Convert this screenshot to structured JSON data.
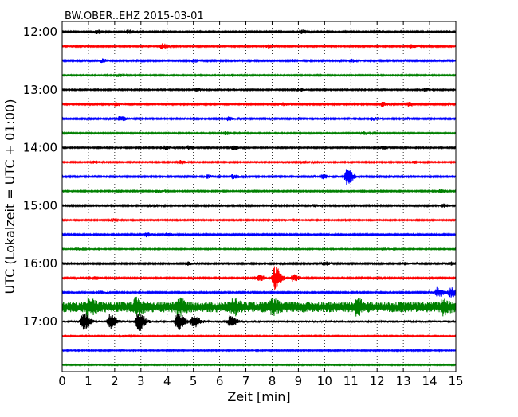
{
  "chart_data": {
    "type": "line",
    "title": "BW.OBER..EHZ 2015-03-01",
    "xlabel": "Zeit  [min]",
    "ylabel": "UTC (Lokalzeit = UTC + 01:00)",
    "xlim": [
      0,
      15
    ],
    "x_ticks": [
      "0",
      "1",
      "2",
      "3",
      "4",
      "5",
      "6",
      "7",
      "8",
      "9",
      "10",
      "11",
      "12",
      "13",
      "14",
      "15"
    ],
    "y_ticks": [
      "12:00",
      "13:00",
      "14:00",
      "15:00",
      "16:00",
      "17:00"
    ],
    "grid": "vertical-dotted",
    "colors": [
      "#000000",
      "#ff0000",
      "#0000ff",
      "#008000"
    ],
    "trace_interval_minutes": 15,
    "traces": [
      {
        "start": "12:00",
        "color": "#000000",
        "noise": 0.18,
        "events": [
          [
            1.3,
            0.6
          ],
          [
            2.5,
            0.5
          ],
          [
            9.1,
            0.6
          ],
          [
            12.0,
            0.4
          ]
        ]
      },
      {
        "start": "12:15",
        "color": "#ff0000",
        "noise": 0.18,
        "events": [
          [
            3.8,
            0.8
          ],
          [
            7.8,
            0.5
          ],
          [
            13.3,
            0.5
          ]
        ]
      },
      {
        "start": "12:30",
        "color": "#0000ff",
        "noise": 0.2,
        "events": [
          [
            1.5,
            0.5
          ],
          [
            5.0,
            0.5
          ],
          [
            8.8,
            0.4
          ],
          [
            11.0,
            0.4
          ]
        ]
      },
      {
        "start": "12:45",
        "color": "#008000",
        "noise": 0.18,
        "events": [
          [
            2.1,
            0.4
          ],
          [
            6.5,
            0.4
          ]
        ]
      },
      {
        "start": "13:00",
        "color": "#000000",
        "noise": 0.18,
        "events": [
          [
            5.1,
            0.5
          ],
          [
            9.0,
            0.4
          ],
          [
            13.8,
            0.4
          ]
        ]
      },
      {
        "start": "13:15",
        "color": "#ff0000",
        "noise": 0.2,
        "events": [
          [
            2.0,
            0.5
          ],
          [
            8.4,
            0.4
          ],
          [
            12.2,
            0.6
          ],
          [
            13.2,
            0.6
          ]
        ]
      },
      {
        "start": "13:30",
        "color": "#0000ff",
        "noise": 0.2,
        "events": [
          [
            2.2,
            0.7
          ],
          [
            6.3,
            0.5
          ],
          [
            11.8,
            0.5
          ]
        ]
      },
      {
        "start": "13:45",
        "color": "#008000",
        "noise": 0.18,
        "events": [
          [
            6.2,
            0.5
          ],
          [
            11.5,
            0.4
          ]
        ]
      },
      {
        "start": "14:00",
        "color": "#000000",
        "noise": 0.18,
        "events": [
          [
            3.9,
            0.5
          ],
          [
            4.8,
            0.6
          ],
          [
            6.5,
            0.6
          ],
          [
            12.2,
            0.5
          ]
        ]
      },
      {
        "start": "14:15",
        "color": "#ff0000",
        "noise": 0.18,
        "events": [
          [
            1.2,
            0.4
          ],
          [
            4.5,
            0.5
          ],
          [
            9.2,
            0.4
          ],
          [
            13.4,
            0.4
          ]
        ]
      },
      {
        "start": "14:30",
        "color": "#0000ff",
        "noise": 0.2,
        "events": [
          [
            5.5,
            0.5
          ],
          [
            6.5,
            0.6
          ],
          [
            9.9,
            0.6
          ],
          [
            10.85,
            2.4
          ]
        ]
      },
      {
        "start": "14:45",
        "color": "#008000",
        "noise": 0.18,
        "events": [
          [
            3.6,
            0.4
          ],
          [
            14.4,
            0.5
          ]
        ]
      },
      {
        "start": "15:00",
        "color": "#000000",
        "noise": 0.2,
        "events": [
          [
            3.5,
            0.4
          ],
          [
            9.6,
            0.4
          ],
          [
            14.5,
            0.5
          ]
        ]
      },
      {
        "start": "15:15",
        "color": "#ff0000",
        "noise": 0.18,
        "events": [
          [
            1.9,
            0.4
          ],
          [
            8.5,
            0.3
          ]
        ]
      },
      {
        "start": "15:30",
        "color": "#0000ff",
        "noise": 0.2,
        "events": [
          [
            3.2,
            0.6
          ],
          [
            4.0,
            0.5
          ]
        ]
      },
      {
        "start": "15:45",
        "color": "#008000",
        "noise": 0.16,
        "events": [
          [
            0.5,
            0.3
          ],
          [
            12.3,
            0.3
          ]
        ]
      },
      {
        "start": "16:00",
        "color": "#000000",
        "noise": 0.2,
        "events": [
          [
            4.8,
            0.5
          ],
          [
            10.0,
            0.5
          ],
          [
            13.0,
            0.4
          ],
          [
            14.8,
            0.5
          ]
        ]
      },
      {
        "start": "16:15",
        "color": "#ff0000",
        "noise": 0.2,
        "events": [
          [
            1.2,
            0.5
          ],
          [
            7.5,
            0.9
          ],
          [
            8.1,
            3.6
          ],
          [
            8.8,
            1.0
          ]
        ]
      },
      {
        "start": "16:30",
        "color": "#0000ff",
        "noise": 0.2,
        "events": [
          [
            1.4,
            0.4
          ],
          [
            14.3,
            1.6
          ],
          [
            14.8,
            1.4
          ]
        ]
      },
      {
        "start": "16:45",
        "color": "#008000",
        "noise": 1.6,
        "events": [
          [
            1.0,
            1.8
          ],
          [
            2.8,
            1.6
          ],
          [
            4.4,
            1.8
          ],
          [
            6.5,
            1.4
          ],
          [
            8.0,
            1.2
          ],
          [
            11.2,
            1.4
          ],
          [
            14.5,
            1.2
          ]
        ]
      },
      {
        "start": "17:00",
        "color": "#000000",
        "noise": 0.35,
        "events": [
          [
            0.8,
            2.6
          ],
          [
            1.8,
            2.0
          ],
          [
            2.9,
            2.8
          ],
          [
            4.4,
            2.6
          ],
          [
            5.0,
            1.6
          ],
          [
            6.4,
            1.6
          ]
        ]
      },
      {
        "start": "17:15",
        "color": "#ff0000",
        "noise": 0.16,
        "events": [
          [
            2.3,
            0.3
          ]
        ]
      },
      {
        "start": "17:30",
        "color": "#0000ff",
        "noise": 0.16,
        "events": []
      },
      {
        "start": "17:45",
        "color": "#008000",
        "noise": 0.16,
        "events": []
      }
    ]
  }
}
